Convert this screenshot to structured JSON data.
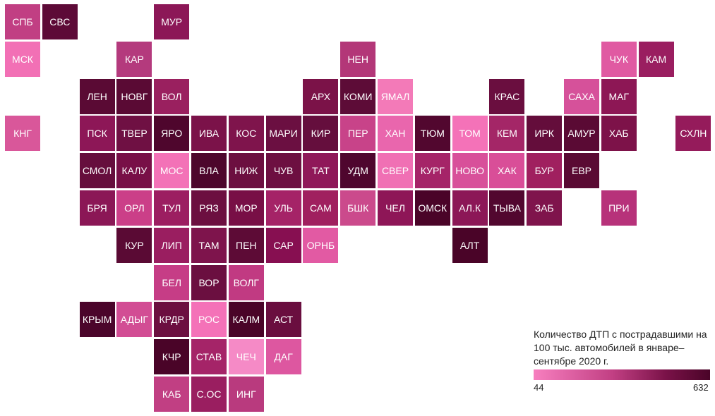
{
  "legend": {
    "title": "Количество ДТП с пострадавшими на 100 тыс. автомобилей в январе–сентябре 2020 г.",
    "min_label": "44",
    "max_label": "632",
    "color_low": "#f77fbf",
    "color_high": "#4a0428"
  },
  "cells": [
    {
      "label": "СПБ",
      "color": "#c13f83"
    },
    {
      "label": "СВС",
      "color": "#5d0a37"
    },
    {
      "label": "МУР",
      "color": "#8c1757"
    },
    {
      "label": "МСК",
      "color": "#f270b5"
    },
    {
      "label": "КАР",
      "color": "#b43a7d"
    },
    {
      "label": "НЕН",
      "color": "#b33778"
    },
    {
      "label": "ЧУК",
      "color": "#e05aa2"
    },
    {
      "label": "КАМ",
      "color": "#9a1e60"
    },
    {
      "label": "ЛЕН",
      "color": "#5a0a34"
    },
    {
      "label": "НОВГ",
      "color": "#5a0a34"
    },
    {
      "label": "ВОЛ",
      "color": "#9a205f"
    },
    {
      "label": "АРХ",
      "color": "#7b1248"
    },
    {
      "label": "КОМИ",
      "color": "#5d0c37"
    },
    {
      "label": "ЯМАЛ",
      "color": "#f37ab8"
    },
    {
      "label": "КРАС",
      "color": "#6a0e3f"
    },
    {
      "label": "САХА",
      "color": "#d6519a"
    },
    {
      "label": "МАГ",
      "color": "#8d1755"
    },
    {
      "label": "КНГ",
      "color": "#d9579a"
    },
    {
      "label": "ПСК",
      "color": "#8d1757"
    },
    {
      "label": "ТВЕР",
      "color": "#6f1043"
    },
    {
      "label": "ЯРО",
      "color": "#4f062d"
    },
    {
      "label": "ИВА",
      "color": "#7b1249"
    },
    {
      "label": "КОС",
      "color": "#7f144c"
    },
    {
      "label": "МАРИ",
      "color": "#6b0f41"
    },
    {
      "label": "КИР",
      "color": "#650e3d"
    },
    {
      "label": "ПЕР",
      "color": "#c84389"
    },
    {
      "label": "ХАН",
      "color": "#e966ad"
    },
    {
      "label": "ТЮМ",
      "color": "#52072f"
    },
    {
      "label": "ТОМ",
      "color": "#f472b8"
    },
    {
      "label": "КЕМ",
      "color": "#a42667"
    },
    {
      "label": "ИРК",
      "color": "#640d3b"
    },
    {
      "label": "АМУР",
      "color": "#5a0a34"
    },
    {
      "label": "ХАБ",
      "color": "#7d1249"
    },
    {
      "label": "СХЛН",
      "color": "#951b5b"
    },
    {
      "label": "СМОЛ",
      "color": "#660e3d"
    },
    {
      "label": "КАЛУ",
      "color": "#780f47"
    },
    {
      "label": "МОС",
      "color": "#f372b7"
    },
    {
      "label": "ВЛА",
      "color": "#4d062c"
    },
    {
      "label": "НИЖ",
      "color": "#6c0f40"
    },
    {
      "label": "ЧУВ",
      "color": "#6d0f41"
    },
    {
      "label": "ТАТ",
      "color": "#8f1859"
    },
    {
      "label": "УДМ",
      "color": "#4f062e"
    },
    {
      "label": "СВЕР",
      "color": "#f070b4"
    },
    {
      "label": "КУРГ",
      "color": "#a52468"
    },
    {
      "label": "НОВО",
      "color": "#d8509a"
    },
    {
      "label": "ХАК",
      "color": "#d94e98"
    },
    {
      "label": "БУР",
      "color": "#a0205f"
    },
    {
      "label": "ЕВР",
      "color": "#5a0a33"
    },
    {
      "label": "БРЯ",
      "color": "#8b1756"
    },
    {
      "label": "ОРЛ",
      "color": "#cb3f88"
    },
    {
      "label": "ТУЛ",
      "color": "#9c1e61"
    },
    {
      "label": "РЯЗ",
      "color": "#6c0f40"
    },
    {
      "label": "МОР",
      "color": "#780f46"
    },
    {
      "label": "УЛЬ",
      "color": "#a52367"
    },
    {
      "label": "САМ",
      "color": "#a0205f"
    },
    {
      "label": "БШК",
      "color": "#cb4a8c"
    },
    {
      "label": "ЧЕЛ",
      "color": "#8e1657"
    },
    {
      "label": "ОМСК",
      "color": "#4a0428"
    },
    {
      "label": "АЛ.К",
      "color": "#8c1757"
    },
    {
      "label": "ТЫВА",
      "color": "#52072f"
    },
    {
      "label": "ЗАБ",
      "color": "#7f144c"
    },
    {
      "label": "ПРИ",
      "color": "#b7327a"
    },
    {
      "label": "КУР",
      "color": "#5a0a34"
    },
    {
      "label": "ЛИП",
      "color": "#9a1e60"
    },
    {
      "label": "ТАМ",
      "color": "#7e144c"
    },
    {
      "label": "ПЕН",
      "color": "#5d0b36"
    },
    {
      "label": "САР",
      "color": "#870f51"
    },
    {
      "label": "ОРНБ",
      "color": "#e25aa3"
    },
    {
      "label": "АЛТ",
      "color": "#4a0428"
    },
    {
      "label": "БЕЛ",
      "color": "#c63d86"
    },
    {
      "label": "ВОР",
      "color": "#6b0f40"
    },
    {
      "label": "ВОЛГ",
      "color": "#c13a82"
    },
    {
      "label": "КРЫМ",
      "color": "#4b052b"
    },
    {
      "label": "АДЫГ",
      "color": "#d24d94"
    },
    {
      "label": "КРДР",
      "color": "#6c0f40"
    },
    {
      "label": "РОС",
      "color": "#f472b8"
    },
    {
      "label": "КАЛМ",
      "color": "#4a0428"
    },
    {
      "label": "АСТ",
      "color": "#6a0e3f"
    },
    {
      "label": "КЧР",
      "color": "#4a0428"
    },
    {
      "label": "СТАВ",
      "color": "#a52468"
    },
    {
      "label": "ЧЕЧ",
      "color": "#f58ac6"
    },
    {
      "label": "ДАГ",
      "color": "#dd57a0"
    },
    {
      "label": "КАБ",
      "color": "#c13f83"
    },
    {
      "label": "С.ОС",
      "color": "#9a1e60"
    },
    {
      "label": "ИНГ",
      "color": "#b93a7e"
    }
  ]
}
